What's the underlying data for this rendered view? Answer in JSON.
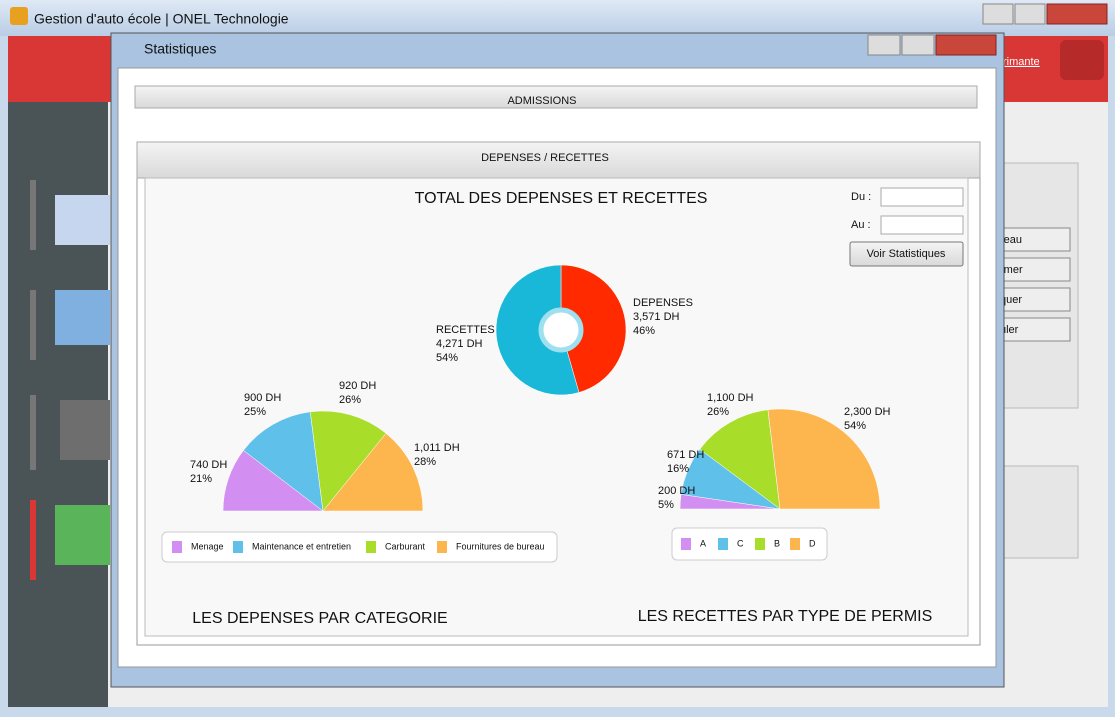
{
  "window": {
    "title": "Gestion d'auto école | ONEL Technologie",
    "header_link": "rimante",
    "side_buttons": [
      "reau",
      "rmer",
      "quer",
      "uler"
    ]
  },
  "dialog": {
    "title": "Statistiques",
    "admissions": "ADMISSIONS",
    "section": "DEPENSES / RECETTES",
    "du": "Du :",
    "au": "Au :",
    "button": "Voir Statistiques"
  },
  "chart_data": [
    {
      "type": "donut",
      "title": "TOTAL DES DEPENSES ET RECETTES",
      "categories": [
        "DEPENSES",
        "RECETTES"
      ],
      "values": [
        3571,
        4271
      ],
      "value_labels": [
        "3,571 DH",
        "4,271 DH"
      ],
      "percent_labels": [
        "46%",
        "54%"
      ],
      "colors": [
        "#ff2a00",
        "#1ab8d8"
      ]
    },
    {
      "type": "semipie",
      "title": "LES DEPENSES PAR CATEGORIE",
      "categories": [
        "Menage",
        "Maintenance et entretien",
        "Carburant",
        "Fournitures de bureau"
      ],
      "values": [
        740,
        900,
        920,
        1011
      ],
      "value_labels": [
        "740 DH",
        "900 DH",
        "920 DH",
        "1,011 DH"
      ],
      "percent_labels": [
        "21%",
        "25%",
        "26%",
        "28%"
      ],
      "colors": [
        "#d28ef0",
        "#5fc0ea",
        "#a8dd2a",
        "#fdb54e"
      ]
    },
    {
      "type": "semipie",
      "title": "LES RECETTES PAR TYPE DE PERMIS",
      "categories": [
        "A",
        "C",
        "B",
        "D"
      ],
      "values": [
        200,
        671,
        1100,
        2300
      ],
      "value_labels": [
        "200 DH",
        "671 DH",
        "1,100 DH",
        "2,300 DH"
      ],
      "percent_labels": [
        "5%",
        "16%",
        "26%",
        "54%"
      ],
      "colors": [
        "#d28ef0",
        "#5fc0ea",
        "#a8dd2a",
        "#fdb54e"
      ]
    }
  ]
}
